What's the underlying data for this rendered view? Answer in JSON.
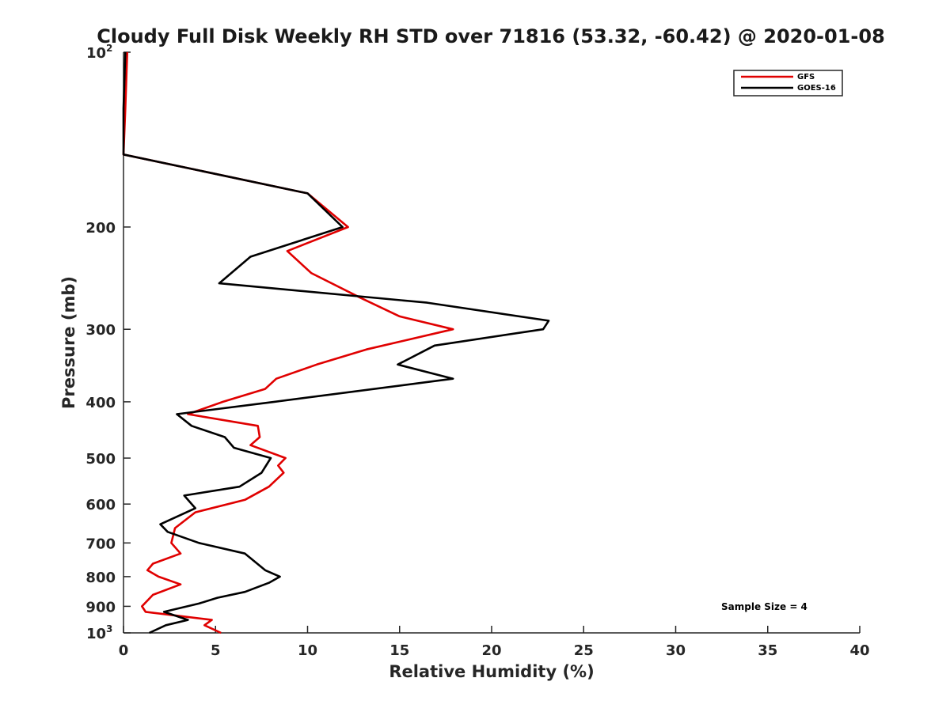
{
  "chart_data": {
    "type": "line",
    "title": "Cloudy Full Disk Weekly RH STD over 71816 (53.32, -60.42) @ 2020-01-08",
    "xlabel": "Relative Humidity (%)",
    "ylabel": "Pressure (mb)",
    "xlim": [
      0,
      40
    ],
    "ylim": [
      100,
      1000
    ],
    "y_scale": "log",
    "y_reversed": true,
    "x_ticks": [
      "0",
      "5",
      "10",
      "15",
      "20",
      "25",
      "30",
      "35",
      "40"
    ],
    "y_ticks": [
      {
        "value": 100,
        "label": "10",
        "exp": "2"
      },
      {
        "value": 200,
        "label": "200"
      },
      {
        "value": 300,
        "label": "300"
      },
      {
        "value": 400,
        "label": "400"
      },
      {
        "value": 500,
        "label": "500"
      },
      {
        "value": 600,
        "label": "600"
      },
      {
        "value": 700,
        "label": "700"
      },
      {
        "value": 800,
        "label": "800"
      },
      {
        "value": 900,
        "label": "900"
      },
      {
        "value": 1000,
        "label": "10",
        "exp": "3"
      }
    ],
    "grid": false,
    "legend_position": "top-right",
    "annotation": "Sample Size = 4",
    "series": [
      {
        "name": "GFS",
        "color": "#e00000",
        "points": [
          [
            0.2,
            100
          ],
          [
            0.1,
            125
          ],
          [
            0.0,
            150
          ],
          [
            10.0,
            175
          ],
          [
            12.2,
            200
          ],
          [
            8.9,
            220
          ],
          [
            10.2,
            240
          ],
          [
            12.9,
            265
          ],
          [
            15.0,
            285
          ],
          [
            17.9,
            300
          ],
          [
            13.2,
            325
          ],
          [
            10.5,
            345
          ],
          [
            8.3,
            365
          ],
          [
            7.7,
            380
          ],
          [
            5.4,
            400
          ],
          [
            3.5,
            420
          ],
          [
            7.3,
            440
          ],
          [
            7.4,
            460
          ],
          [
            6.9,
            475
          ],
          [
            8.8,
            500
          ],
          [
            8.4,
            515
          ],
          [
            8.7,
            530
          ],
          [
            7.9,
            560
          ],
          [
            6.6,
            590
          ],
          [
            3.9,
            620
          ],
          [
            2.8,
            660
          ],
          [
            2.6,
            700
          ],
          [
            3.1,
            730
          ],
          [
            1.6,
            760
          ],
          [
            1.3,
            780
          ],
          [
            1.9,
            800
          ],
          [
            3.1,
            825
          ],
          [
            1.6,
            860
          ],
          [
            1.0,
            900
          ],
          [
            1.2,
            920
          ],
          [
            4.8,
            950
          ],
          [
            4.4,
            970
          ],
          [
            5.3,
            1000
          ]
        ]
      },
      {
        "name": "GOES-16",
        "color": "#000000",
        "points": [
          [
            0.1,
            100
          ],
          [
            0.0,
            125
          ],
          [
            0.0,
            150
          ],
          [
            10.0,
            175
          ],
          [
            11.9,
            200
          ],
          [
            6.9,
            225
          ],
          [
            5.2,
            250
          ],
          [
            16.5,
            270
          ],
          [
            23.1,
            290
          ],
          [
            22.8,
            300
          ],
          [
            16.9,
            320
          ],
          [
            14.9,
            345
          ],
          [
            17.9,
            365
          ],
          [
            8.2,
            400
          ],
          [
            2.9,
            420
          ],
          [
            3.7,
            440
          ],
          [
            5.5,
            460
          ],
          [
            6.0,
            480
          ],
          [
            8.0,
            500
          ],
          [
            7.5,
            530
          ],
          [
            6.3,
            560
          ],
          [
            3.3,
            580
          ],
          [
            3.9,
            610
          ],
          [
            2.0,
            650
          ],
          [
            2.4,
            670
          ],
          [
            4.1,
            700
          ],
          [
            6.6,
            730
          ],
          [
            7.7,
            780
          ],
          [
            8.5,
            800
          ],
          [
            7.9,
            820
          ],
          [
            6.6,
            850
          ],
          [
            5.1,
            870
          ],
          [
            4.1,
            890
          ],
          [
            2.2,
            920
          ],
          [
            3.5,
            950
          ],
          [
            2.3,
            970
          ],
          [
            1.4,
            1000
          ]
        ]
      }
    ]
  }
}
